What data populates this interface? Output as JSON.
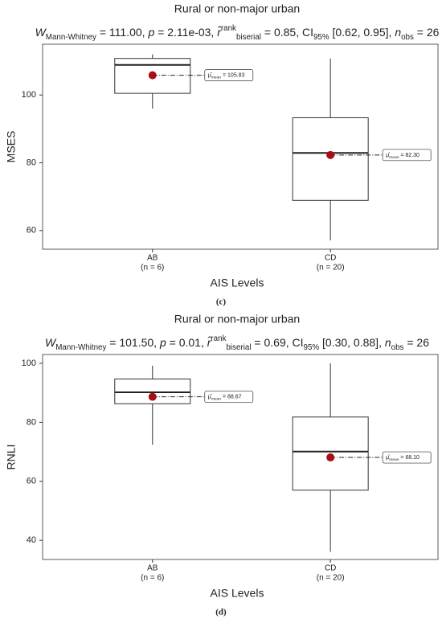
{
  "chart_data": [
    {
      "type": "boxplot",
      "title": "Rural or non-major urban",
      "subtitle": [
        {
          "text": "W",
          "style": "italic"
        },
        {
          "text": "Mann-Whitney",
          "style": "sub"
        },
        {
          "text": " = 111.00, "
        },
        {
          "text": "p",
          "style": "italic"
        },
        {
          "text": " = 2.11e-03, "
        },
        {
          "text": "r̂",
          "style": "italic"
        },
        {
          "text": "rank",
          "style": "sup"
        },
        {
          "text": "biserial",
          "style": "sub"
        },
        {
          "text": " = 0.85, CI"
        },
        {
          "text": "95%",
          "style": "sub"
        },
        {
          "text": " [0.62, 0.95], "
        },
        {
          "text": "n",
          "style": "italic"
        },
        {
          "text": "obs",
          "style": "sub"
        },
        {
          "text": " = 26"
        }
      ],
      "x_label": "AIS  Levels",
      "y_label": "MSES",
      "caption": "(c)",
      "categories": [
        "AB",
        "CD"
      ],
      "category_notes": [
        "(n = 6)",
        "(n = 20)"
      ],
      "boxes": [
        {
          "whisker_low": 96,
          "q1": 100.5,
          "median": 108.9,
          "q3": 110.8,
          "whisker_high": 112,
          "mean": 105.83,
          "mean_label": "105.83"
        },
        {
          "whisker_low": 57.1,
          "q1": 68.9,
          "median": 82.9,
          "q3": 93.3,
          "whisker_high": 110.8,
          "mean": 82.3,
          "mean_label": "82.30"
        }
      ],
      "mean_label_prefix": [
        {
          "text": "μ̂"
        },
        {
          "text": "mean",
          "style": "sub"
        },
        {
          "text": " = "
        }
      ],
      "mean_color": "#a50f15",
      "ylim": [
        54.5,
        115
      ],
      "yticks": [
        60,
        80,
        100
      ]
    },
    {
      "type": "boxplot",
      "title": "Rural or non-major urban",
      "subtitle": [
        {
          "text": "W",
          "style": "italic"
        },
        {
          "text": "Mann-Whitney",
          "style": "sub"
        },
        {
          "text": " = 101.50, "
        },
        {
          "text": "p",
          "style": "italic"
        },
        {
          "text": " = 0.01, "
        },
        {
          "text": "r̂",
          "style": "italic"
        },
        {
          "text": "rank",
          "style": "sup"
        },
        {
          "text": "biserial",
          "style": "sub"
        },
        {
          "text": " = 0.69, CI"
        },
        {
          "text": "95%",
          "style": "sub"
        },
        {
          "text": " [0.30, 0.88], "
        },
        {
          "text": "n",
          "style": "italic"
        },
        {
          "text": "obs",
          "style": "sub"
        },
        {
          "text": " = 26"
        }
      ],
      "x_label": "AIS  Levels",
      "y_label": "RNLI",
      "caption": "(d)",
      "categories": [
        "AB",
        "CD"
      ],
      "category_notes": [
        "(n = 6)",
        "(n = 20)"
      ],
      "boxes": [
        {
          "whisker_low": 72.4,
          "q1": 86.3,
          "median": 90.2,
          "q3": 94.7,
          "whisker_high": 99.2,
          "mean": 88.67,
          "mean_label": "88.67"
        },
        {
          "whisker_low": 36.1,
          "q1": 57,
          "median": 70.1,
          "q3": 81.8,
          "whisker_high": 100,
          "mean": 68.1,
          "mean_label": "68.10"
        }
      ],
      "mean_label_prefix": [
        {
          "text": "μ̂"
        },
        {
          "text": "mean",
          "style": "sub"
        },
        {
          "text": " = "
        }
      ],
      "mean_color": "#a50f15",
      "ylim": [
        33.5,
        103
      ],
      "yticks": [
        40,
        60,
        80,
        100
      ]
    }
  ]
}
